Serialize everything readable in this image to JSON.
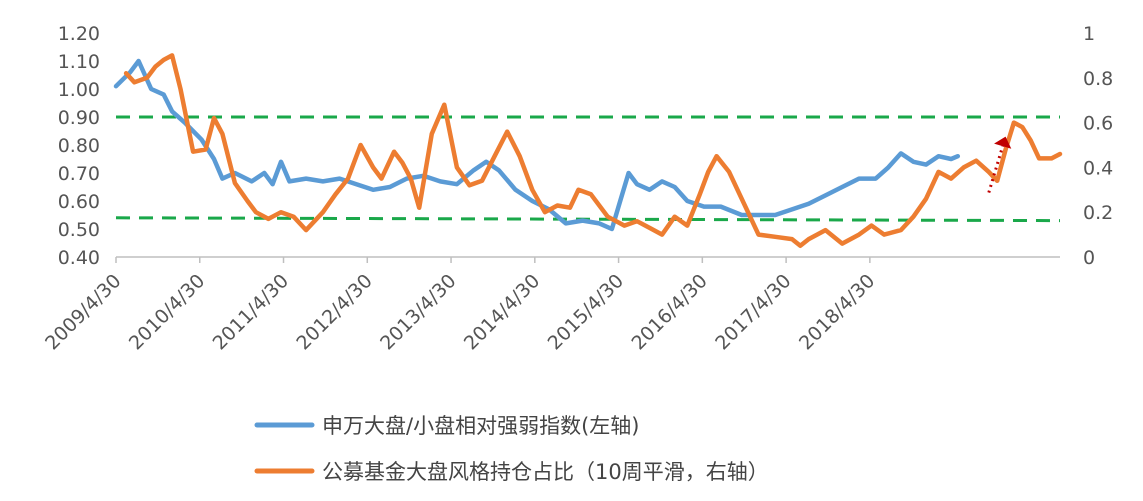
{
  "chart_data": {
    "type": "line",
    "x_categories": [
      "2009/4/30",
      "2010/4/30",
      "2011/4/30",
      "2012/4/30",
      "2013/4/30",
      "2014/4/30",
      "2015/4/30",
      "2016/4/30",
      "2017/4/30",
      "2018/4/30"
    ],
    "y_left": {
      "min": 0.4,
      "max": 1.2,
      "ticks": [
        "0.40",
        "0.50",
        "0.60",
        "0.70",
        "0.80",
        "0.90",
        "1.00",
        "1.10",
        "1.20"
      ]
    },
    "y_right": {
      "min": 0,
      "max": 1,
      "ticks": [
        "0",
        "0.2",
        "0.4",
        "0.6",
        "0.8",
        "1"
      ]
    },
    "grid": false,
    "legend_position": "bottom",
    "series": [
      {
        "name": "申万大盘/小盘相对强弱指数(左轴)",
        "axis": "left",
        "color": "#5B9BD5",
        "points": [
          [
            2009.33,
            1.01
          ],
          [
            2009.5,
            1.06
          ],
          [
            2009.6,
            1.1
          ],
          [
            2009.75,
            1.0
          ],
          [
            2009.9,
            0.98
          ],
          [
            2010.0,
            0.92
          ],
          [
            2010.15,
            0.88
          ],
          [
            2010.35,
            0.82
          ],
          [
            2010.5,
            0.75
          ],
          [
            2010.6,
            0.68
          ],
          [
            2010.75,
            0.7
          ],
          [
            2010.95,
            0.67
          ],
          [
            2011.1,
            0.7
          ],
          [
            2011.2,
            0.66
          ],
          [
            2011.3,
            0.74
          ],
          [
            2011.4,
            0.67
          ],
          [
            2011.6,
            0.68
          ],
          [
            2011.8,
            0.67
          ],
          [
            2012.0,
            0.68
          ],
          [
            2012.2,
            0.66
          ],
          [
            2012.4,
            0.64
          ],
          [
            2012.6,
            0.65
          ],
          [
            2012.8,
            0.68
          ],
          [
            2013.0,
            0.69
          ],
          [
            2013.2,
            0.67
          ],
          [
            2013.4,
            0.66
          ],
          [
            2013.6,
            0.71
          ],
          [
            2013.75,
            0.74
          ],
          [
            2013.9,
            0.71
          ],
          [
            2014.1,
            0.64
          ],
          [
            2014.3,
            0.6
          ],
          [
            2014.5,
            0.57
          ],
          [
            2014.7,
            0.52
          ],
          [
            2014.9,
            0.53
          ],
          [
            2015.1,
            0.52
          ],
          [
            2015.25,
            0.5
          ],
          [
            2015.35,
            0.6
          ],
          [
            2015.45,
            0.7
          ],
          [
            2015.55,
            0.66
          ],
          [
            2015.7,
            0.64
          ],
          [
            2015.85,
            0.67
          ],
          [
            2016.0,
            0.65
          ],
          [
            2016.15,
            0.6
          ],
          [
            2016.35,
            0.58
          ],
          [
            2016.55,
            0.58
          ],
          [
            2016.8,
            0.55
          ],
          [
            2017.0,
            0.55
          ],
          [
            2017.2,
            0.55
          ],
          [
            2017.4,
            0.57
          ],
          [
            2017.6,
            0.59
          ],
          [
            2017.8,
            0.62
          ],
          [
            2018.0,
            0.65
          ],
          [
            2018.2,
            0.68
          ],
          [
            2018.4,
            0.68
          ],
          [
            2018.55,
            0.72
          ],
          [
            2018.7,
            0.77
          ],
          [
            2018.85,
            0.74
          ],
          [
            2019.0,
            0.73
          ],
          [
            2019.15,
            0.76
          ],
          [
            2019.3,
            0.75
          ],
          [
            2019.38,
            0.76
          ]
        ]
      },
      {
        "name": "公募基金大盘风格持仓占比（10周平滑，右轴）",
        "axis": "right",
        "color": "#ED7D31",
        "points": [
          [
            2009.45,
            0.82
          ],
          [
            2009.55,
            0.78
          ],
          [
            2009.7,
            0.8
          ],
          [
            2009.8,
            0.85
          ],
          [
            2009.9,
            0.88
          ],
          [
            2010.0,
            0.9
          ],
          [
            2010.1,
            0.75
          ],
          [
            2010.25,
            0.47
          ],
          [
            2010.4,
            0.48
          ],
          [
            2010.5,
            0.62
          ],
          [
            2010.6,
            0.55
          ],
          [
            2010.75,
            0.33
          ],
          [
            2010.9,
            0.25
          ],
          [
            2011.0,
            0.2
          ],
          [
            2011.15,
            0.17
          ],
          [
            2011.3,
            0.2
          ],
          [
            2011.45,
            0.18
          ],
          [
            2011.6,
            0.12
          ],
          [
            2011.8,
            0.2
          ],
          [
            2011.95,
            0.28
          ],
          [
            2012.1,
            0.35
          ],
          [
            2012.25,
            0.5
          ],
          [
            2012.4,
            0.4
          ],
          [
            2012.5,
            0.35
          ],
          [
            2012.65,
            0.47
          ],
          [
            2012.75,
            0.42
          ],
          [
            2012.85,
            0.35
          ],
          [
            2012.95,
            0.22
          ],
          [
            2013.1,
            0.55
          ],
          [
            2013.25,
            0.68
          ],
          [
            2013.4,
            0.4
          ],
          [
            2013.55,
            0.32
          ],
          [
            2013.7,
            0.34
          ],
          [
            2013.85,
            0.45
          ],
          [
            2014.0,
            0.56
          ],
          [
            2014.15,
            0.45
          ],
          [
            2014.3,
            0.3
          ],
          [
            2014.45,
            0.2
          ],
          [
            2014.6,
            0.23
          ],
          [
            2014.75,
            0.22
          ],
          [
            2014.85,
            0.3
          ],
          [
            2015.0,
            0.28
          ],
          [
            2015.2,
            0.18
          ],
          [
            2015.4,
            0.14
          ],
          [
            2015.55,
            0.16
          ],
          [
            2015.7,
            0.13
          ],
          [
            2015.85,
            0.1
          ],
          [
            2016.0,
            0.18
          ],
          [
            2016.15,
            0.14
          ],
          [
            2016.3,
            0.28
          ],
          [
            2016.4,
            0.38
          ],
          [
            2016.5,
            0.45
          ],
          [
            2016.65,
            0.38
          ],
          [
            2016.85,
            0.22
          ],
          [
            2017.0,
            0.1
          ],
          [
            2017.2,
            0.09
          ],
          [
            2017.4,
            0.08
          ],
          [
            2017.5,
            0.05
          ],
          [
            2017.6,
            0.08
          ],
          [
            2017.8,
            0.12
          ],
          [
            2018.0,
            0.06
          ],
          [
            2018.2,
            0.1
          ],
          [
            2018.35,
            0.14
          ],
          [
            2018.5,
            0.1
          ],
          [
            2018.7,
            0.12
          ],
          [
            2018.85,
            0.18
          ],
          [
            2019.0,
            0.26
          ],
          [
            2019.15,
            0.38
          ],
          [
            2019.3,
            0.35
          ],
          [
            2019.45,
            0.4
          ],
          [
            2019.6,
            0.43
          ],
          [
            2019.75,
            0.38
          ],
          [
            2019.85,
            0.34
          ],
          [
            2019.95,
            0.48
          ],
          [
            2020.05,
            0.6
          ],
          [
            2020.15,
            0.58
          ],
          [
            2020.25,
            0.52
          ],
          [
            2020.35,
            0.44
          ],
          [
            2020.5,
            0.44
          ],
          [
            2020.6,
            0.46
          ]
        ]
      }
    ],
    "reference_lines": [
      {
        "axis": "left",
        "from": [
          2009.33,
          0.9
        ],
        "to": [
          2020.6,
          0.9
        ],
        "style": "dashed",
        "color": "#1AA84A"
      },
      {
        "axis": "left",
        "from": [
          2009.33,
          0.54
        ],
        "to": [
          2020.6,
          0.53
        ],
        "style": "dashed",
        "color": "#1AA84A"
      }
    ],
    "annotations": [
      {
        "type": "dotted-arrow",
        "axis": "left",
        "color": "#C00000",
        "from": [
          2019.75,
          0.63
        ],
        "to": [
          2019.95,
          0.83
        ]
      }
    ]
  }
}
